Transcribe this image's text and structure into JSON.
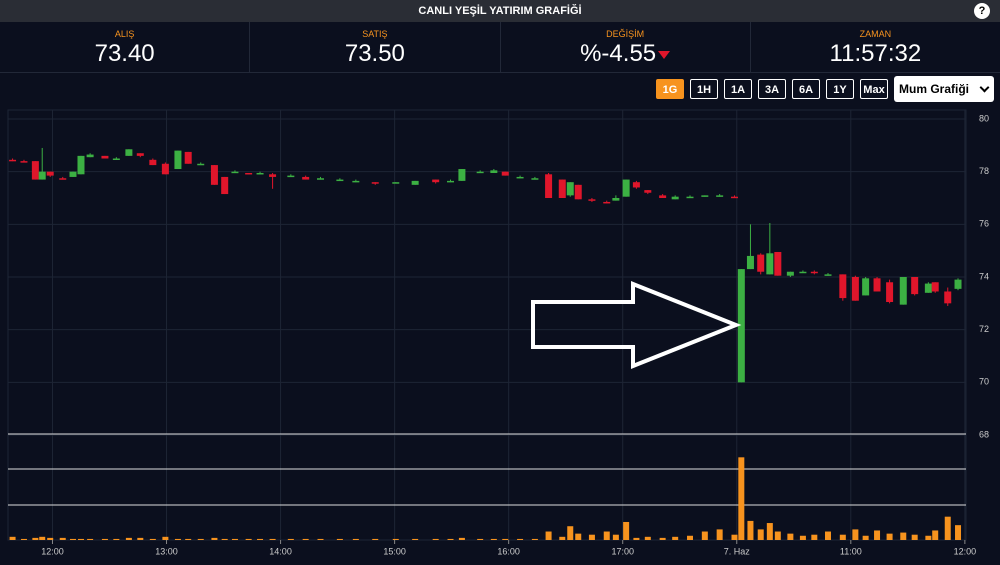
{
  "header": {
    "title": "CANLI YEŞİL YATIRIM GRAFİĞİ",
    "help": "?"
  },
  "quotes": [
    {
      "label": "ALIŞ",
      "value": "73.40"
    },
    {
      "label": "SATIŞ",
      "value": "73.50"
    },
    {
      "label": "DEĞİŞİM",
      "value": "%-4.55"
    },
    {
      "label": "ZAMAN",
      "value": "11:57:32"
    }
  ],
  "ranges": [
    "1G",
    "1H",
    "1A",
    "3A",
    "6A",
    "1Y",
    "Max"
  ],
  "active_range": 0,
  "chart_type_select": "Mum Grafiği",
  "chart_data": {
    "type": "candlestick",
    "up_color": "#3cb043",
    "down_color": "#e0162b",
    "volume_color": "#f7931e",
    "xlim": [
      -0.39,
      8.01
    ],
    "ylim": [
      68,
      80
    ],
    "y2lim": [
      0,
      100
    ],
    "xticks": [
      {
        "value": 0,
        "label": "12:00"
      },
      {
        "value": 1,
        "label": "13:00"
      },
      {
        "value": 2,
        "label": "14:00"
      },
      {
        "value": 3,
        "label": "15:00"
      },
      {
        "value": 4,
        "label": "16:00"
      },
      {
        "value": 5,
        "label": "17:00"
      },
      {
        "value": 6,
        "label": "7. Haz"
      },
      {
        "value": 7,
        "label": "11:00"
      },
      {
        "value": 8,
        "label": "12:00"
      }
    ],
    "yticks": [
      68,
      70,
      72,
      74,
      76,
      78,
      80
    ],
    "grid": true,
    "x": [
      -0.35,
      -0.25,
      -0.15,
      -0.09,
      -0.02,
      0.09,
      0.18,
      0.25,
      0.33,
      0.46,
      0.56,
      0.67,
      0.77,
      0.88,
      0.99,
      1.1,
      1.19,
      1.3,
      1.42,
      1.51,
      1.6,
      1.72,
      1.82,
      1.93,
      2.09,
      2.22,
      2.35,
      2.52,
      2.66,
      2.83,
      3.01,
      3.18,
      3.36,
      3.49,
      3.59,
      3.75,
      3.87,
      3.97,
      4.1,
      4.23,
      4.35,
      4.47,
      4.54,
      4.61,
      4.73,
      4.86,
      4.94,
      5.03,
      5.12,
      5.22,
      5.35,
      5.46,
      5.59,
      5.72,
      5.85,
      5.98,
      6.04,
      6.12,
      6.21,
      6.29,
      6.36,
      6.47,
      6.58,
      6.68,
      6.8,
      6.93,
      7.04,
      7.13,
      7.23,
      7.34,
      7.46,
      7.56,
      7.68,
      7.74,
      7.85,
      7.94
    ],
    "open": [
      78.45,
      78.4,
      78.4,
      77.7,
      78.0,
      77.75,
      77.8,
      77.9,
      78.55,
      78.6,
      78.5,
      78.6,
      78.7,
      78.45,
      78.3,
      78.1,
      78.75,
      78.3,
      78.25,
      77.8,
      78.0,
      77.95,
      77.95,
      77.9,
      77.85,
      77.8,
      77.75,
      77.7,
      77.65,
      77.6,
      77.6,
      77.5,
      77.7,
      77.65,
      77.65,
      78.0,
      77.95,
      78.0,
      77.8,
      77.75,
      77.9,
      77.7,
      77.1,
      77.5,
      76.95,
      76.85,
      76.9,
      77.05,
      77.6,
      77.3,
      77.1,
      76.95,
      77.05,
      77.05,
      77.1,
      77.05,
      70.0,
      74.3,
      74.85,
      74.1,
      74.95,
      74.05,
      74.2,
      74.2,
      74.1,
      74.1,
      74.0,
      73.3,
      73.95,
      73.8,
      72.95,
      74.0,
      73.4,
      73.8,
      73.45,
      73.55
    ],
    "high": [
      78.5,
      78.45,
      78.4,
      78.9,
      78.0,
      77.8,
      78.0,
      78.6,
      78.7,
      78.6,
      78.55,
      78.85,
      78.7,
      78.5,
      78.35,
      78.8,
      78.75,
      78.35,
      78.25,
      77.8,
      78.05,
      77.95,
      78.0,
      77.95,
      77.9,
      77.85,
      77.8,
      77.75,
      77.7,
      77.6,
      77.6,
      77.65,
      77.7,
      77.7,
      78.1,
      78.05,
      78.1,
      78.0,
      77.85,
      77.8,
      77.95,
      77.7,
      77.6,
      77.5,
      77.0,
      76.9,
      77.1,
      77.7,
      77.65,
      77.3,
      77.15,
      77.1,
      77.1,
      77.1,
      77.15,
      77.1,
      74.3,
      76.0,
      74.9,
      76.05,
      74.95,
      74.2,
      74.25,
      74.25,
      74.15,
      74.1,
      74.05,
      74.0,
      74.0,
      73.9,
      74.0,
      74.0,
      73.8,
      73.8,
      73.6,
      73.95
    ],
    "low": [
      78.4,
      78.35,
      77.7,
      77.7,
      77.8,
      77.7,
      77.8,
      77.9,
      78.55,
      78.5,
      78.45,
      78.6,
      78.55,
      78.25,
      77.9,
      78.1,
      78.3,
      78.25,
      77.5,
      77.15,
      77.95,
      77.9,
      77.9,
      77.35,
      77.8,
      77.7,
      77.7,
      77.65,
      77.6,
      77.5,
      77.55,
      77.5,
      77.55,
      77.6,
      77.65,
      77.95,
      77.95,
      77.85,
      77.75,
      77.7,
      77.0,
      77.0,
      77.05,
      76.95,
      76.85,
      76.8,
      76.9,
      77.05,
      77.35,
      77.15,
      77.0,
      76.95,
      77.0,
      77.05,
      77.05,
      77.0,
      70.0,
      74.3,
      74.1,
      74.1,
      74.05,
      74.0,
      74.15,
      74.1,
      74.05,
      73.1,
      73.1,
      73.3,
      73.45,
      73.0,
      72.95,
      73.3,
      73.4,
      73.4,
      72.9,
      73.5
    ],
    "close": [
      78.4,
      78.35,
      77.7,
      78.0,
      77.85,
      77.7,
      78.0,
      78.6,
      78.65,
      78.5,
      78.5,
      78.85,
      78.6,
      78.25,
      77.9,
      78.8,
      78.3,
      78.3,
      77.5,
      77.15,
      78.0,
      77.9,
      77.95,
      77.8,
      77.85,
      77.7,
      77.75,
      77.7,
      77.65,
      77.55,
      77.6,
      77.65,
      77.6,
      77.65,
      78.1,
      78.0,
      78.05,
      77.85,
      77.8,
      77.75,
      77.0,
      77.0,
      77.6,
      76.95,
      76.9,
      76.8,
      77.0,
      77.7,
      77.4,
      77.2,
      77.0,
      77.05,
      77.05,
      77.1,
      77.1,
      77.0,
      74.3,
      74.8,
      74.2,
      74.9,
      74.05,
      74.2,
      74.2,
      74.15,
      74.1,
      73.2,
      73.1,
      73.95,
      73.45,
      73.05,
      74.0,
      73.35,
      73.75,
      73.45,
      73.0,
      73.9
    ],
    "volume": [
      3,
      1,
      2,
      3,
      2,
      2,
      1,
      1,
      1,
      1,
      1,
      2,
      2,
      1,
      3,
      1,
      1,
      1,
      2,
      1,
      1,
      1,
      1,
      1,
      1,
      1,
      1,
      1,
      1,
      1,
      1,
      1,
      1,
      1,
      2,
      1,
      1,
      1,
      1,
      1,
      8,
      3,
      13,
      6,
      5,
      8,
      5,
      17,
      2,
      3,
      2,
      3,
      4,
      8,
      10,
      5,
      78,
      18,
      10,
      16,
      8,
      6,
      4,
      5,
      8,
      5,
      10,
      4,
      9,
      6,
      7,
      5,
      4,
      9,
      22,
      14
    ]
  }
}
